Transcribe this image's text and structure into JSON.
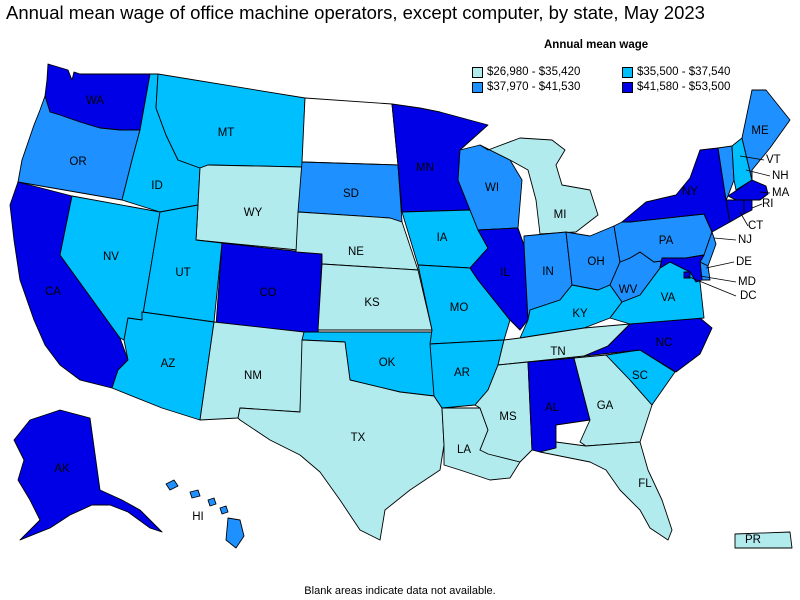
{
  "title": "Annual mean wage of office machine operators, except computer, by state, May 2023",
  "legend": {
    "title": "Annual mean wage",
    "items": [
      {
        "label": "$26,980 - $35,420",
        "color": "#b2ebee"
      },
      {
        "label": "$35,500 - $37,540",
        "color": "#00bfff"
      },
      {
        "label": "$37,970 - $41,530",
        "color": "#1e90ff"
      },
      {
        "label": "$41,580 - $53,500",
        "color": "#0000e6"
      }
    ]
  },
  "colors": {
    "nodata": "#ffffff",
    "border": "#000000"
  },
  "states": {
    "WA": {
      "label": "WA",
      "bin": 3
    },
    "OR": {
      "label": "OR",
      "bin": 2
    },
    "CA": {
      "label": "CA",
      "bin": 3
    },
    "ID": {
      "label": "ID",
      "bin": 1
    },
    "NV": {
      "label": "NV",
      "bin": 1
    },
    "MT": {
      "label": "MT",
      "bin": 1
    },
    "WY": {
      "label": "WY",
      "bin": 0
    },
    "UT": {
      "label": "UT",
      "bin": 1
    },
    "AZ": {
      "label": "AZ",
      "bin": 1
    },
    "CO": {
      "label": "CO",
      "bin": 3
    },
    "NM": {
      "label": "NM",
      "bin": 0
    },
    "ND": {
      "label": "",
      "bin": null
    },
    "SD": {
      "label": "SD",
      "bin": 2
    },
    "NE": {
      "label": "NE",
      "bin": 0
    },
    "KS": {
      "label": "KS",
      "bin": 0
    },
    "OK": {
      "label": "OK",
      "bin": 1
    },
    "TX": {
      "label": "TX",
      "bin": 0
    },
    "MN": {
      "label": "MN",
      "bin": 3
    },
    "IA": {
      "label": "IA",
      "bin": 1
    },
    "MO": {
      "label": "MO",
      "bin": 1
    },
    "AR": {
      "label": "AR",
      "bin": 1
    },
    "LA": {
      "label": "LA",
      "bin": 0
    },
    "WI": {
      "label": "WI",
      "bin": 2
    },
    "IL": {
      "label": "IL",
      "bin": 3
    },
    "MI": {
      "label": "MI",
      "bin": 0
    },
    "IN": {
      "label": "IN",
      "bin": 2
    },
    "OH": {
      "label": "OH",
      "bin": 2
    },
    "KY": {
      "label": "KY",
      "bin": 1
    },
    "TN": {
      "label": "TN",
      "bin": 0
    },
    "MS": {
      "label": "MS",
      "bin": 0
    },
    "AL": {
      "label": "AL",
      "bin": 3
    },
    "GA": {
      "label": "GA",
      "bin": 0
    },
    "FL": {
      "label": "FL",
      "bin": 0
    },
    "SC": {
      "label": "SC",
      "bin": 1
    },
    "NC": {
      "label": "NC",
      "bin": 3
    },
    "VA": {
      "label": "VA",
      "bin": 1
    },
    "WV": {
      "label": "WV",
      "bin": 2
    },
    "PA": {
      "label": "PA",
      "bin": 2
    },
    "NY": {
      "label": "NY",
      "bin": 3
    },
    "VT": {
      "label": "VT",
      "bin": 2
    },
    "NH": {
      "label": "NH",
      "bin": 1
    },
    "ME": {
      "label": "ME",
      "bin": 2
    },
    "MA": {
      "label": "MA",
      "bin": 3
    },
    "RI": {
      "label": "RI",
      "bin": 3
    },
    "CT": {
      "label": "CT",
      "bin": 3
    },
    "NJ": {
      "label": "NJ",
      "bin": 2
    },
    "DE": {
      "label": "DE",
      "bin": 2
    },
    "MD": {
      "label": "MD",
      "bin": 3
    },
    "DC": {
      "label": "DC",
      "bin": 3
    },
    "AK": {
      "label": "AK",
      "bin": 3
    },
    "HI": {
      "label": "HI",
      "bin": 2
    },
    "PR": {
      "label": "PR",
      "bin": 0
    }
  },
  "footnote": "Blank areas indicate data not available."
}
